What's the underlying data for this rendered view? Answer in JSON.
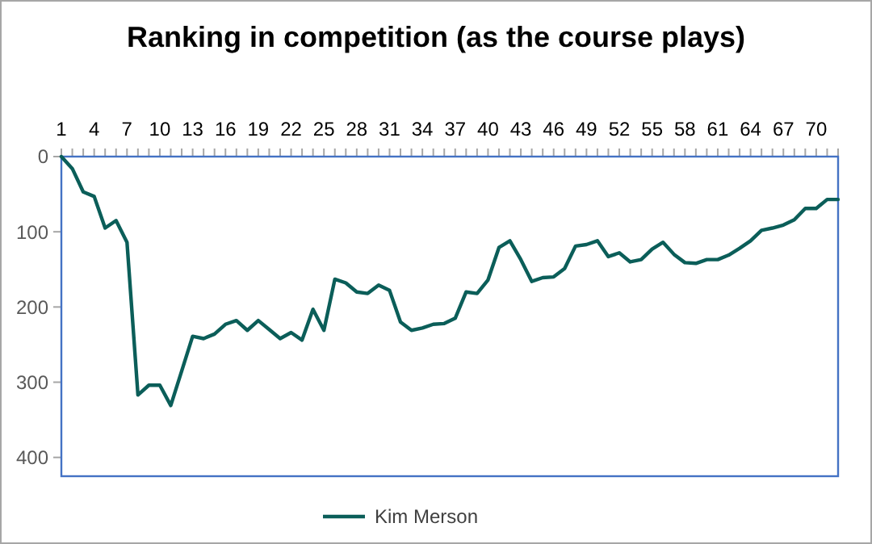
{
  "chart_data": {
    "type": "line",
    "title": "Ranking in competition (as the course plays)",
    "x": [
      1,
      2,
      3,
      4,
      5,
      6,
      7,
      8,
      9,
      10,
      11,
      12,
      13,
      14,
      15,
      16,
      17,
      18,
      19,
      20,
      21,
      22,
      23,
      24,
      25,
      26,
      27,
      28,
      29,
      30,
      31,
      32,
      33,
      34,
      35,
      36,
      37,
      38,
      39,
      40,
      41,
      42,
      43,
      44,
      45,
      46,
      47,
      48,
      49,
      50,
      51,
      52,
      53,
      54,
      55,
      56,
      57,
      58,
      59,
      60,
      61,
      62,
      63,
      64,
      65,
      66,
      67,
      68,
      69,
      70,
      71,
      72
    ],
    "series": [
      {
        "name": "Kim Merson",
        "color": "#0b5e59",
        "values": [
          0,
          16,
          47,
          53,
          95,
          85,
          114,
          317,
          304,
          304,
          331,
          285,
          239,
          242,
          236,
          223,
          218,
          231,
          218,
          230,
          242,
          234,
          244,
          203,
          231,
          163,
          168,
          180,
          182,
          171,
          178,
          220,
          231,
          228,
          223,
          222,
          215,
          180,
          182,
          164,
          121,
          112,
          137,
          166,
          161,
          160,
          149,
          119,
          117,
          112,
          133,
          128,
          140,
          137,
          123,
          114,
          130,
          141,
          142,
          137,
          137,
          131,
          122,
          112,
          98,
          95,
          91,
          84,
          69,
          69,
          57,
          57
        ]
      }
    ],
    "xlim": [
      1,
      72
    ],
    "xticks": [
      1,
      4,
      7,
      10,
      13,
      16,
      19,
      22,
      25,
      28,
      31,
      34,
      37,
      40,
      43,
      46,
      49,
      52,
      55,
      58,
      61,
      64,
      67,
      70
    ],
    "ylim": [
      425,
      0
    ],
    "yticks": [
      0,
      100,
      200,
      300,
      400
    ],
    "grid": false,
    "legend": "bottom",
    "marker": "none",
    "line_style": "solid"
  }
}
